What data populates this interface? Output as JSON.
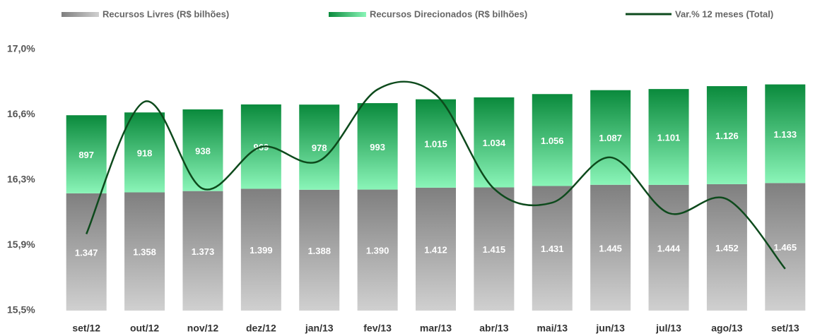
{
  "chart_data": {
    "type": "bar",
    "stacked": true,
    "categories": [
      "set/12",
      "out/12",
      "nov/12",
      "dez/12",
      "jan/13",
      "fev/13",
      "mar/13",
      "abr/13",
      "mai/13",
      "jun/13",
      "jul/13",
      "ago/13",
      "set/13"
    ],
    "series": [
      {
        "name": "Recursos Livres (R$ bilhões)",
        "color": "#7f7f7f",
        "axis": "y2",
        "values": [
          1347,
          1358,
          1373,
          1399,
          1388,
          1390,
          1412,
          1415,
          1431,
          1445,
          1444,
          1452,
          1465
        ],
        "value_labels": [
          "1.347",
          "1.358",
          "1.373",
          "1.399",
          "1.388",
          "1.390",
          "1.412",
          "1.415",
          "1.431",
          "1.445",
          "1.444",
          "1.452",
          "1.465"
        ]
      },
      {
        "name": "Recursos Direcionados (R$ bilhões)",
        "color": "#0a8a3c",
        "axis": "y2",
        "values": [
          897,
          918,
          938,
          969,
          978,
          993,
          1015,
          1034,
          1056,
          1087,
          1101,
          1126,
          1133
        ],
        "value_labels": [
          "897",
          "918",
          "938",
          "969",
          "978",
          "993",
          "1.015",
          "1.034",
          "1.056",
          "1.087",
          "1.101",
          "1.126",
          "1.133"
        ]
      },
      {
        "name": "Var.% 12 meses (Total)",
        "type": "line",
        "color": "#0d4a1c",
        "values": [
          15.94,
          16.7,
          16.2,
          16.44,
          16.36,
          16.77,
          16.74,
          16.2,
          16.12,
          16.38,
          16.06,
          16.14,
          15.74
        ]
      }
    ],
    "ylim": [
      15.5,
      17.0
    ],
    "yticks": [
      {
        "value": 15.5,
        "label": "15,5%"
      },
      {
        "value": 15.875,
        "label": "15,9%"
      },
      {
        "value": 16.25,
        "label": "16,3%"
      },
      {
        "value": 16.625,
        "label": "16,6%"
      },
      {
        "value": 17.0,
        "label": "17,0%"
      }
    ],
    "y2lim": [
      0,
      3000
    ]
  }
}
